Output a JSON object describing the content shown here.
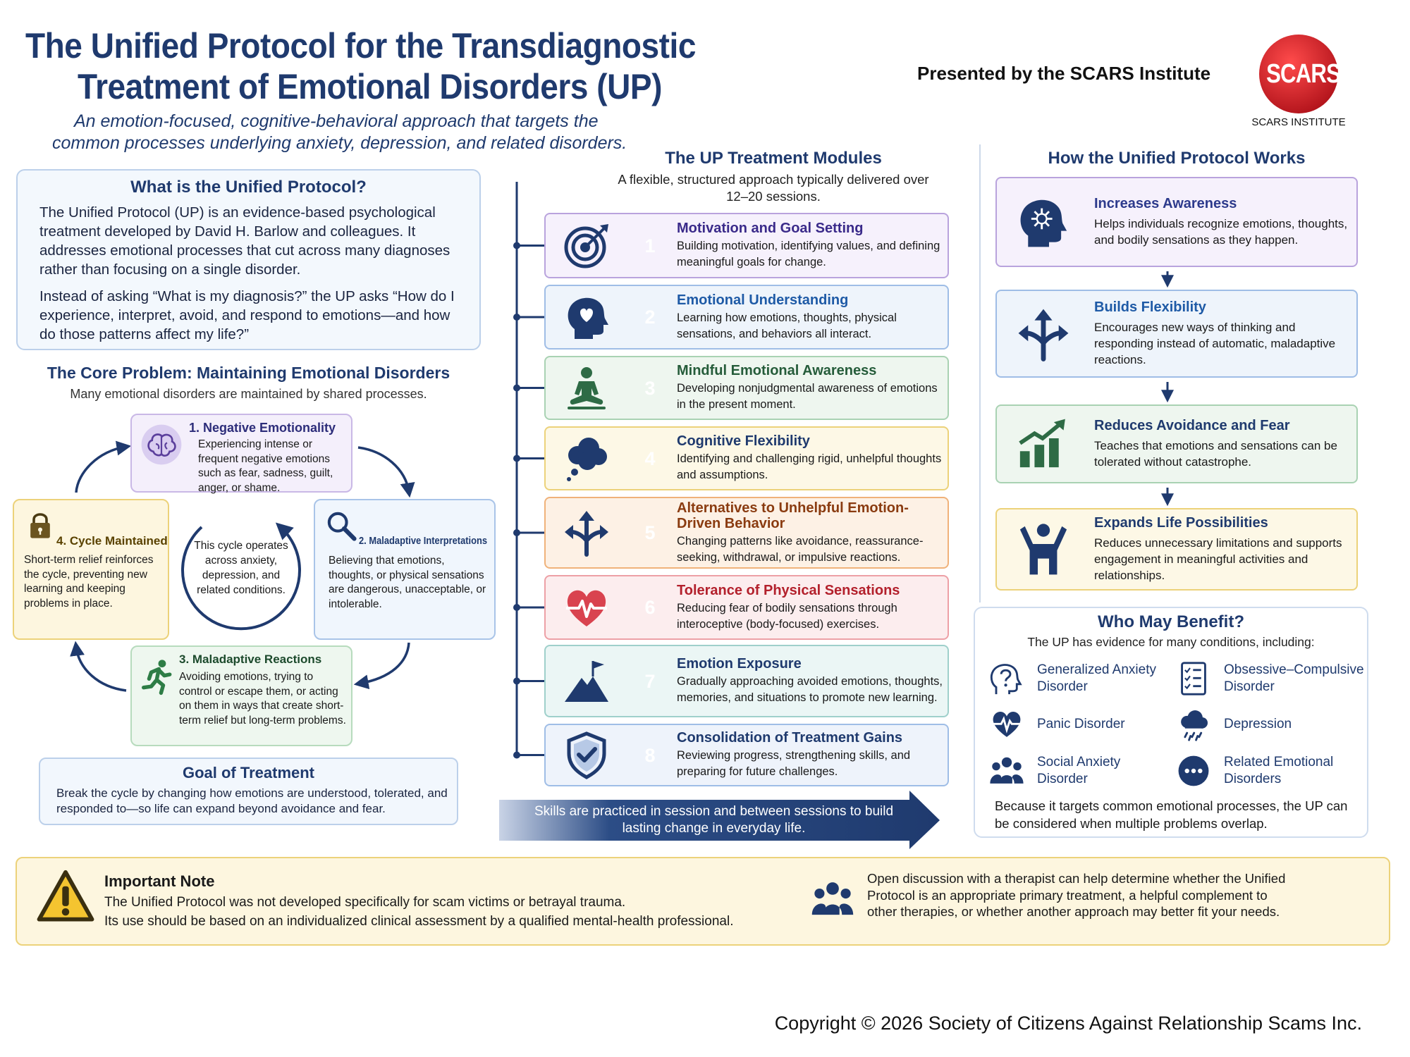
{
  "header": {
    "title_line1": "The Unified Protocol for the Transdiagnostic",
    "title_line2": "Treatment of Emotional Disorders (UP)",
    "subtitle_line1": "An emotion-focused, cognitive-behavioral approach that targets the",
    "subtitle_line2": "common processes underlying anxiety, depression, and related disorders.",
    "presented_by": "Presented by the SCARS Institute",
    "logo_text": "SCARS",
    "logo_caption": "SCARS INSTITUTE"
  },
  "what_is": {
    "heading": "What is the Unified Protocol?",
    "paragraph1": "The Unified Protocol (UP) is an evidence-based psychological treatment developed by David H. Barlow and colleagues. It addresses emotional processes that cut across many diagnoses rather than focusing on a single disorder.",
    "paragraph2": "Instead of asking “What is my diagnosis?” the UP asks “How do I experience, interpret, avoid, and respond to emotions—and how do those patterns affect my life?”"
  },
  "core_problem": {
    "heading": "The Core Problem: Maintaining Emotional Disorders",
    "subheading": "Many emotional disorders are maintained by shared processes.",
    "cycle": [
      {
        "title": "1. Negative Emotionality",
        "text": "Experiencing intense or frequent negative emotions such as fear, sadness, guilt, anger, or shame."
      },
      {
        "title": "2. Maladaptive Interpretations",
        "text": "Believing that emotions, thoughts, or physical sensations are dangerous, unacceptable, or intolerable."
      },
      {
        "title": "3. Maladaptive Reactions",
        "text": "Avoiding emotions, trying to control or escape them, or acting on them in ways that create short-term relief but long-term problems."
      },
      {
        "title": "4. Cycle Maintained",
        "text": "Short-term relief reinforces the cycle, preventing new learning and keeping problems in place."
      }
    ],
    "center_text": "This cycle operates across anxiety, depression, and related conditions."
  },
  "goal": {
    "heading": "Goal of Treatment",
    "text": "Break the cycle by changing how emotions are understood, tolerated, and responded to—so life can expand beyond avoidance and fear."
  },
  "modules": {
    "heading": "The UP Treatment Modules",
    "subheading": "A flexible, structured approach typically delivered over 12–20 sessions.",
    "items": [
      {
        "number": 1,
        "title": "Motivation and Goal Setting",
        "text": "Building motivation, identifying values, and defining meaningful goals for change."
      },
      {
        "number": 2,
        "title": "Emotional Understanding",
        "text": "Learning how emotions, thoughts, physical sensations, and behaviors all interact."
      },
      {
        "number": 3,
        "title": "Mindful Emotional Awareness",
        "text": "Developing nonjudgmental awareness of emotions in the present moment."
      },
      {
        "number": 4,
        "title": "Cognitive Flexibility",
        "text": "Identifying and challenging rigid, unhelpful thoughts and assumptions."
      },
      {
        "number": 5,
        "title": "Alternatives to Unhelpful Emotion-Driven Behavior",
        "text": "Changing patterns like avoidance, reassurance-seeking, withdrawal, or impulsive reactions."
      },
      {
        "number": 6,
        "title": "Tolerance of Physical Sensations",
        "text": "Reducing fear of bodily sensations through interoceptive (body-focused) exercises."
      },
      {
        "number": 7,
        "title": "Emotion Exposure",
        "text": "Gradually approaching avoided emotions, thoughts, memories, and situations to promote new learning."
      },
      {
        "number": 8,
        "title": "Consolidation of Treatment Gains",
        "text": "Reviewing progress, strengthening skills, and preparing for future challenges."
      }
    ],
    "banner": "Skills are practiced in session and between sessions to build lasting change in everyday life."
  },
  "how_it_works": {
    "heading": "How the Unified Protocol Works",
    "steps": [
      {
        "title": "Increases Awareness",
        "text": "Helps individuals recognize emotions, thoughts, and bodily sensations as they happen."
      },
      {
        "title": "Builds Flexibility",
        "text": "Encourages new ways of thinking and responding instead of automatic, maladaptive reactions."
      },
      {
        "title": "Reduces Avoidance and Fear",
        "text": "Teaches that emotions and sensations can be tolerated without catastrophe."
      },
      {
        "title": "Expands Life Possibilities",
        "text": "Reduces unnecessary limitations and supports engagement in meaningful activities and relationships."
      }
    ]
  },
  "who_may_benefit": {
    "heading": "Who May Benefit?",
    "subheading": "The UP has evidence for many conditions, including:",
    "conditions": [
      "Generalized Anxiety Disorder",
      "Obsessive–Compulsive Disorder",
      "Panic Disorder",
      "Depression",
      "Social Anxiety Disorder",
      "Related Emotional Disorders"
    ],
    "footer": "Because it targets common emotional processes, the UP can be considered when multiple problems overlap."
  },
  "important_note": {
    "heading": "Important Note",
    "text_lines": [
      "The Unified Protocol was not developed specifically for scam victims or betrayal trauma.",
      "Its use should be based on an individualized clinical assessment by a qualified mental-health professional."
    ],
    "discussion": "Open discussion with a therapist can help determine whether the Unified Protocol is an appropriate primary treatment, a helpful complement to other therapies, or whether another approach may better fit your needs."
  },
  "copyright": "Copyright © 2026 Society of Citizens Against Relationship Scams Inc."
}
